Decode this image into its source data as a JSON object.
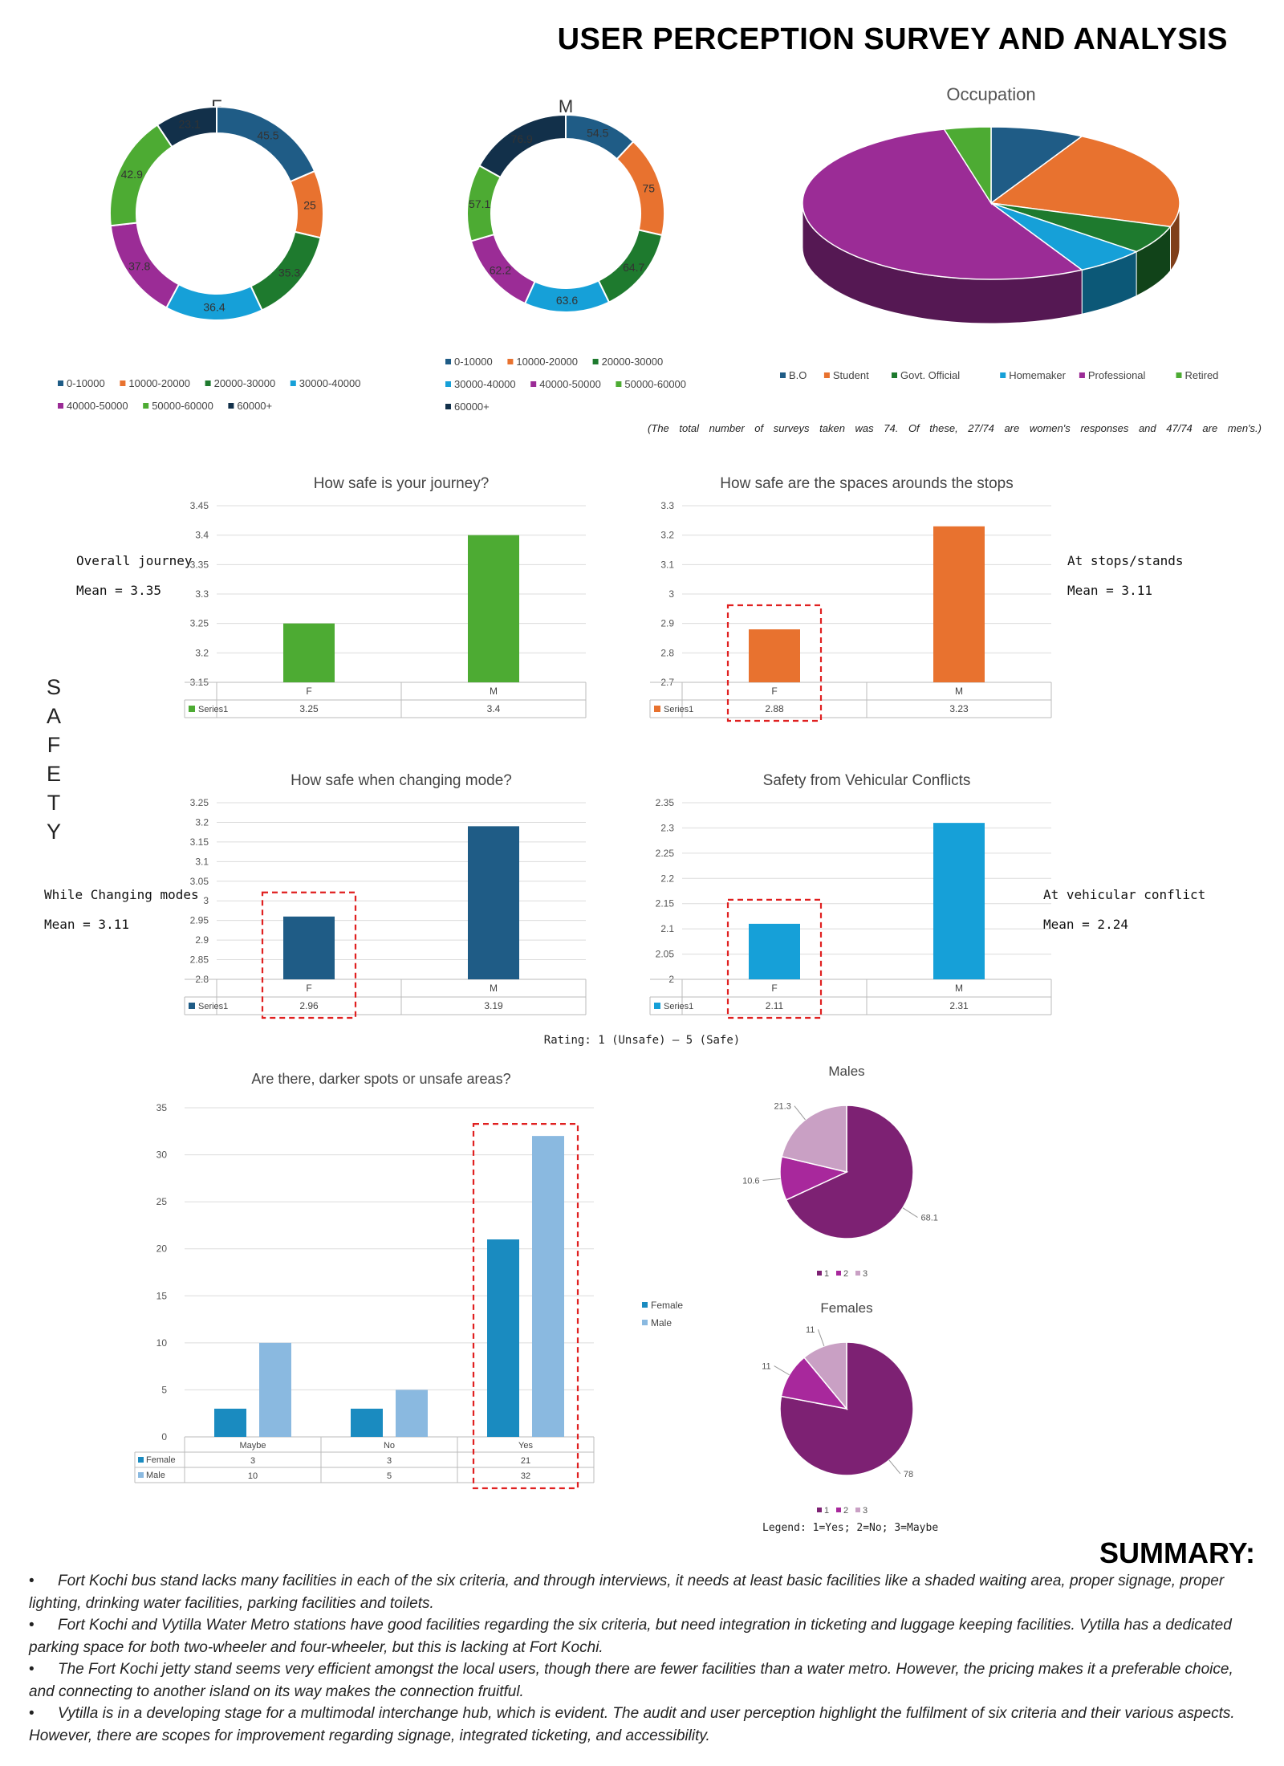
{
  "page_title": "USER PERCEPTION SURVEY AND ANALYSIS",
  "survey_note": "(The total number of surveys taken was 74. Of these, 27/74 are women's responses and 47/74 are men's.)",
  "safety_label": "SAFETY",
  "side_labels": {
    "journey": {
      "title": "Overall journey",
      "mean": "Mean = 3.35"
    },
    "stops": {
      "title": "At stops/stands",
      "mean": "Mean = 3.11"
    },
    "mode": {
      "title": "While Changing modes",
      "mean": "Mean = 3.11"
    },
    "vehicular": {
      "title": "At vehicular conflict",
      "mean": "Mean = 2.24"
    }
  },
  "rating_note": "Rating:  1 (Unsafe) – 5 (Safe)",
  "legend_note": "Legend:  1=Yes; 2=No; 3=Maybe",
  "summary": {
    "title": "SUMMARY:",
    "bullet": "•",
    "items": [
      "Fort Kochi bus stand lacks many facilities in each of the six criteria, and through interviews, it needs at least basic facilities like a shaded waiting area, proper signage, proper lighting, drinking water facilities, parking facilities and toilets.",
      "Fort Kochi and Vytilla Water Metro stations have good facilities regarding the six criteria, but need integration in ticketing and luggage keeping facilities. Vytilla has a dedicated parking space for both two-wheeler and four-wheeler, but this is lacking at Fort Kochi.",
      "The Fort Kochi jetty stand seems very efficient amongst the local users, though there are fewer facilities than a water metro. However, the pricing makes it a preferable choice, and connecting to another island on its way makes the connection fruitful.",
      "Vytilla is in a developing stage for a multimodal interchange hub, which is evident. The audit and user perception highlight the fulfilment of six criteria and their various aspects. However, there are scopes for improvement regarding signage, integrated ticketing, and accessibility."
    ]
  },
  "colors": {
    "income": [
      "#1f5c86",
      "#e8722f",
      "#1e7a2e",
      "#16a0d8",
      "#9b2c96",
      "#4dab33",
      "#12304a"
    ],
    "occupation": [
      "#1f5c86",
      "#e8722f",
      "#1e7a2e",
      "#16a0d8",
      "#9b2c96",
      "#4dab33"
    ],
    "safety": [
      "#4dab33",
      "#e8722f",
      "#1f5c86",
      "#16a0d8"
    ],
    "dark_spots": [
      "#1a8bc0",
      "#8ab9e0"
    ],
    "pies": [
      "#7d2173",
      "#a8289c",
      "#c9a0c4"
    ],
    "highlight": "#e02020"
  },
  "chart_data": [
    {
      "id": "donut_f",
      "type": "pie",
      "style": "donut",
      "title": "F",
      "categories": [
        "0-10000",
        "10000-20000",
        "20000-30000",
        "30000-40000",
        "40000-50000",
        "50000-60000",
        "60000+"
      ],
      "values": [
        45.5,
        25,
        35.3,
        36.4,
        37.8,
        42.9,
        23.1
      ],
      "labels": [
        "45.5",
        "25",
        "35.3",
        "36.4",
        "37.8",
        "42.9",
        "23.1"
      ]
    },
    {
      "id": "donut_m",
      "type": "pie",
      "style": "donut",
      "title": "M",
      "categories": [
        "0-10000",
        "10000-20000",
        "20000-30000",
        "30000-40000",
        "40000-50000",
        "50000-60000",
        "60000+"
      ],
      "values": [
        54.5,
        75,
        64.7,
        63.6,
        62.2,
        57.1,
        76.9
      ],
      "labels": [
        "54.5",
        "75",
        "64.7",
        "63.6",
        "62.2",
        "57.1",
        "76.9"
      ]
    },
    {
      "id": "occupation",
      "type": "pie",
      "style": "3d",
      "title": "Occupation",
      "categories": [
        "B.O",
        "Student",
        "Govt. Official",
        "Homemaker",
        "Professional",
        "Retired"
      ],
      "values": [
        8,
        22,
        6,
        6,
        54,
        4
      ]
    },
    {
      "id": "journey",
      "type": "bar",
      "title": "How safe is your journey?",
      "categories": [
        "F",
        "M"
      ],
      "series": [
        {
          "name": "Series1",
          "values": [
            3.25,
            3.4
          ]
        }
      ],
      "value_labels": [
        "3.25",
        "3.4"
      ],
      "ylim": [
        3.15,
        3.45
      ],
      "yticks": [
        "3.15",
        "3.2",
        "3.25",
        "3.3",
        "3.35",
        "3.4",
        "3.45"
      ],
      "grid": true,
      "data_table": true
    },
    {
      "id": "stops",
      "type": "bar",
      "title": "How safe are the spaces arounds the stops",
      "categories": [
        "F",
        "M"
      ],
      "series": [
        {
          "name": "Series1",
          "values": [
            2.88,
            3.23
          ]
        }
      ],
      "value_labels": [
        "2.88",
        "3.23"
      ],
      "ylim": [
        2.7,
        3.3
      ],
      "yticks": [
        "2.7",
        "2.8",
        "2.9",
        "3",
        "3.1",
        "3.2",
        "3.3"
      ],
      "grid": true,
      "data_table": true,
      "highlight": "F"
    },
    {
      "id": "mode",
      "type": "bar",
      "title": "How safe when changing mode?",
      "categories": [
        "F",
        "M"
      ],
      "series": [
        {
          "name": "Series1",
          "values": [
            2.96,
            3.19
          ]
        }
      ],
      "value_labels": [
        "2.96",
        "3.19"
      ],
      "ylim": [
        2.8,
        3.25
      ],
      "yticks": [
        "2.8",
        "2.85",
        "2.9",
        "2.95",
        "3",
        "3.05",
        "3.1",
        "3.15",
        "3.2",
        "3.25"
      ],
      "grid": true,
      "data_table": true,
      "highlight": "F"
    },
    {
      "id": "vehicular",
      "type": "bar",
      "title": "Safety from Vehicular Conflicts",
      "categories": [
        "F",
        "M"
      ],
      "series": [
        {
          "name": "Series1",
          "values": [
            2.11,
            2.31
          ]
        }
      ],
      "value_labels": [
        "2.11",
        "2.31"
      ],
      "ylim": [
        2,
        2.35
      ],
      "yticks": [
        "2",
        "2.05",
        "2.1",
        "2.15",
        "2.2",
        "2.25",
        "2.3",
        "2.35"
      ],
      "grid": true,
      "data_table": true,
      "highlight": "F"
    },
    {
      "id": "darkspots",
      "type": "bar",
      "title": "Are there, darker spots or unsafe areas?",
      "categories": [
        "Maybe",
        "No",
        "Yes"
      ],
      "series": [
        {
          "name": "Female",
          "values": [
            3,
            3,
            21
          ]
        },
        {
          "name": "Male",
          "values": [
            10,
            5,
            32
          ]
        }
      ],
      "value_labels": [
        [
          "3",
          "3",
          "21"
        ],
        [
          "10",
          "5",
          "32"
        ]
      ],
      "ylim": [
        0,
        35
      ],
      "yticks": [
        "0",
        "5",
        "10",
        "15",
        "20",
        "25",
        "30",
        "35"
      ],
      "grid": true,
      "legend": "right",
      "data_table": true,
      "highlight": "Yes"
    },
    {
      "id": "pie_males",
      "type": "pie",
      "title": "Males",
      "categories": [
        "1",
        "2",
        "3"
      ],
      "values": [
        68.1,
        10.6,
        21.3
      ],
      "labels": [
        "68.1",
        "10.6",
        "21.3"
      ],
      "legend": "bottom"
    },
    {
      "id": "pie_females",
      "type": "pie",
      "title": "Females",
      "categories": [
        "1",
        "2",
        "3"
      ],
      "values": [
        78,
        11,
        11
      ],
      "labels": [
        "78",
        "11",
        "11"
      ],
      "legend": "bottom"
    }
  ]
}
